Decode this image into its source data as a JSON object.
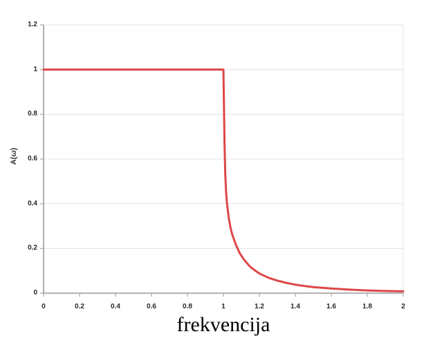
{
  "figure": {
    "background": "#ffffff"
  },
  "chart_data": {
    "type": "line",
    "title": "",
    "xlabel": "frekvencija",
    "ylabel": "A(ω)",
    "xlim": [
      0,
      2
    ],
    "ylim": [
      0,
      1.2
    ],
    "grid": "horizontal",
    "legend": "none",
    "xticks": {
      "values": [
        0,
        0.2,
        0.4,
        0.6,
        0.8,
        1,
        1.2,
        1.4,
        1.6,
        1.8,
        2
      ],
      "labels": [
        "0",
        "0.2",
        "0.4",
        "0.6",
        "0.8",
        "1",
        "1.2",
        "1.4",
        "1.6",
        "1.8",
        "2"
      ]
    },
    "yticks": {
      "values": [
        0,
        0.2,
        0.4,
        0.6,
        0.8,
        1,
        1.2
      ],
      "labels": [
        "0",
        "0.2",
        "0.4",
        "0.6",
        "0.8",
        "1",
        "1.2"
      ]
    },
    "series": [
      {
        "name": "A(ω)",
        "color": "#dd4646",
        "points": [
          [
            0,
            1
          ],
          [
            0.2,
            1
          ],
          [
            0.4,
            1
          ],
          [
            0.6,
            1
          ],
          [
            0.8,
            1
          ],
          [
            0.95,
            1
          ],
          [
            1.0,
            1
          ],
          [
            1.003,
            0.84
          ],
          [
            1.006,
            0.68
          ],
          [
            1.01,
            0.54
          ],
          [
            1.015,
            0.45
          ],
          [
            1.02,
            0.4
          ],
          [
            1.03,
            0.335
          ],
          [
            1.04,
            0.29
          ],
          [
            1.05,
            0.26
          ],
          [
            1.07,
            0.215
          ],
          [
            1.09,
            0.18
          ],
          [
            1.11,
            0.155
          ],
          [
            1.13,
            0.135
          ],
          [
            1.15,
            0.117
          ],
          [
            1.18,
            0.099
          ],
          [
            1.2,
            0.088
          ],
          [
            1.25,
            0.069
          ],
          [
            1.3,
            0.056
          ],
          [
            1.35,
            0.046
          ],
          [
            1.4,
            0.038
          ],
          [
            1.45,
            0.032
          ],
          [
            1.5,
            0.027
          ],
          [
            1.55,
            0.024
          ],
          [
            1.6,
            0.021
          ],
          [
            1.7,
            0.016
          ],
          [
            1.8,
            0.012
          ],
          [
            1.9,
            0.0095
          ],
          [
            2.0,
            0.008
          ]
        ]
      }
    ],
    "colors": {
      "line": "#dd4646",
      "gridline": "#e3e3e3",
      "axis": "#999999",
      "tick_mark": "#b0b0b0",
      "tick_label": "#262626",
      "axis_label": "#000000"
    }
  }
}
